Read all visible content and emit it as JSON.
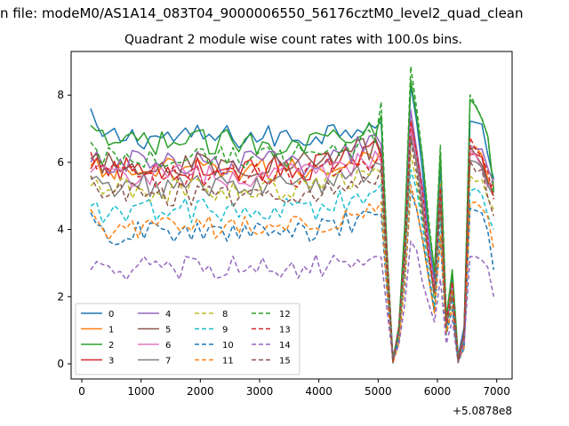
{
  "chart_data": {
    "type": "line",
    "suptitle": "n file: modeM0/AS1A14_083T04_9000006550_56176cztM0_level2_quad_clean",
    "title": "Quadrant 2 module wise count rates with 100.0s bins.",
    "xlabel": "",
    "ylabel": "",
    "x_offset_label": "+5.0878e8",
    "xlim": [
      -180,
      7260
    ],
    "ylim": [
      -0.45,
      9.3
    ],
    "xticks": [
      0,
      1000,
      2000,
      3000,
      4000,
      5000,
      6000,
      7000
    ],
    "yticks": [
      0,
      2,
      4,
      6,
      8
    ],
    "grid": false,
    "legend_position": "lower-left",
    "legend_columns": 4,
    "x_start": 150,
    "x_step": 100,
    "colors": [
      "#1f77b4",
      "#ff7f0e",
      "#2ca02c",
      "#d62728",
      "#9467bd",
      "#8c564b",
      "#e377c2",
      "#7f7f7f",
      "#bcbd22",
      "#17becf"
    ],
    "series": [
      {
        "name": "0",
        "style": "solid",
        "color": "#1f77b4",
        "level": 6.75,
        "start": 7.6,
        "peak": 8.2,
        "end": 5.5
      },
      {
        "name": "1",
        "style": "solid",
        "color": "#ff7f0e",
        "level": 5.75,
        "start": 5.9,
        "peak": 7.2,
        "end": 5.0
      },
      {
        "name": "2",
        "style": "solid",
        "color": "#2ca02c",
        "level": 6.6,
        "start": 7.1,
        "peak": 8.6,
        "end": 5.2
      },
      {
        "name": "3",
        "style": "solid",
        "color": "#d62728",
        "level": 5.8,
        "start": 5.8,
        "peak": 7.1,
        "end": 5.3
      },
      {
        "name": "4",
        "style": "solid",
        "color": "#9467bd",
        "level": 6.0,
        "start": 6.0,
        "peak": 7.4,
        "end": 5.4
      },
      {
        "name": "5",
        "style": "solid",
        "color": "#8c564b",
        "level": 5.95,
        "start": 6.1,
        "peak": 7.0,
        "end": 5.1
      },
      {
        "name": "6",
        "style": "solid",
        "color": "#e377c2",
        "level": 5.6,
        "start": 5.7,
        "peak": 7.0,
        "end": 5.5
      },
      {
        "name": "7",
        "style": "solid",
        "color": "#7f7f7f",
        "level": 5.3,
        "start": 5.5,
        "peak": 6.8,
        "end": 5.0
      },
      {
        "name": "8",
        "style": "dashed",
        "color": "#bcbd22",
        "level": 5.2,
        "start": 5.3,
        "peak": 6.4,
        "end": 4.6
      },
      {
        "name": "9",
        "style": "dashed",
        "color": "#17becf",
        "level": 4.55,
        "start": 4.7,
        "peak": 5.9,
        "end": 4.0
      },
      {
        "name": "10",
        "style": "dashed",
        "color": "#1f77b4",
        "level": 3.9,
        "start": 4.5,
        "peak": 5.2,
        "end": 2.8
      },
      {
        "name": "11",
        "style": "dashed",
        "color": "#ff7f0e",
        "level": 4.05,
        "start": 4.6,
        "peak": 5.5,
        "end": 3.4
      },
      {
        "name": "12",
        "style": "dashed",
        "color": "#2ca02c",
        "level": 6.15,
        "start": 6.6,
        "peak": 8.8,
        "end": 5.1
      },
      {
        "name": "13",
        "style": "dashed",
        "color": "#d62728",
        "level": 5.6,
        "start": 6.3,
        "peak": 7.3,
        "end": 4.9
      },
      {
        "name": "14",
        "style": "dashed",
        "color": "#9467bd",
        "level": 2.85,
        "start": 2.8,
        "peak": 3.7,
        "end": 2.0
      },
      {
        "name": "15",
        "style": "dashed",
        "color": "#8c564b",
        "level": 5.05,
        "start": 5.6,
        "peak": 6.6,
        "end": 4.4
      }
    ],
    "common_profile": {
      "note_x": [
        5000,
        5100,
        5200,
        5250,
        5400,
        5550,
        5700,
        5850,
        5950,
        6050,
        6150,
        6250,
        6350,
        6450,
        6550,
        6750,
        6950
      ],
      "fraction": [
        1.0,
        0.75,
        0.06,
        0.0,
        0.2,
        1.0,
        0.8,
        0.48,
        0.3,
        0.72,
        0.15,
        0.32,
        0.02,
        0.12,
        0.9,
        0.85,
        0.7
      ]
    }
  }
}
